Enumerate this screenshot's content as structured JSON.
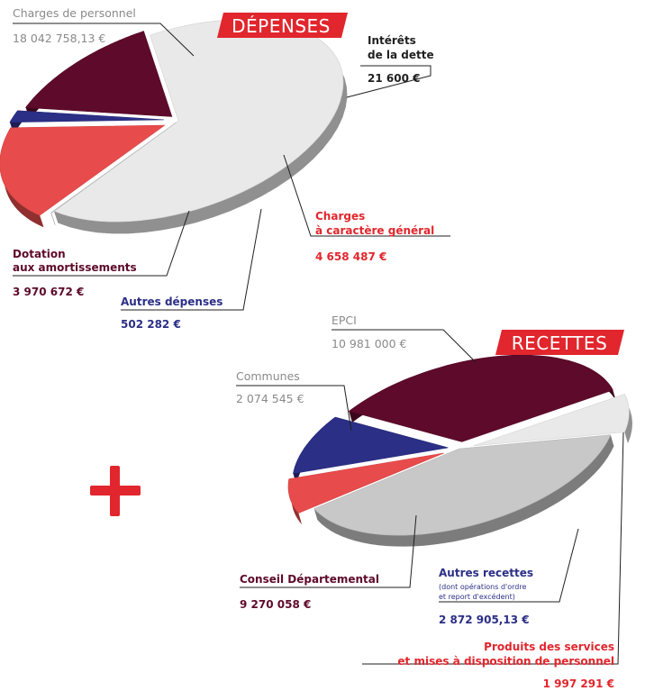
{
  "colors": {
    "grey": "#c8c8c8",
    "light": "#e9e9e9",
    "red": "#e84b4b",
    "navy": "#2b2f86",
    "burgundy": "#5e0a2a",
    "banner": "#e1262d",
    "text_grey": "#8a8a8a",
    "text_dark": "#1f1f1f"
  },
  "chart_data": [
    {
      "type": "pie",
      "title": "DÉPENSES",
      "slices": [
        {
          "key": "personnel",
          "label": "Charges de personnel",
          "value": 18042758.13,
          "value_label": "18 042 758,13 €",
          "color": "#e9e9e9"
        },
        {
          "key": "interets",
          "label": "Intérêts de la dette",
          "label_lines": [
            "Intérêts",
            "de la dette"
          ],
          "value": 21600,
          "value_label": "21 600 €",
          "color": "#c8c8c8"
        },
        {
          "key": "general",
          "label": "Charges à caractère général",
          "label_lines": [
            "Charges",
            "à caractère général"
          ],
          "value": 4658487,
          "value_label": "4 658 487 €",
          "color": "#e84b4b"
        },
        {
          "key": "autres",
          "label": "Autres dépenses",
          "value": 502282,
          "value_label": "502 282 €",
          "color": "#2b2f86"
        },
        {
          "key": "dotation",
          "label": "Dotation aux amortissements",
          "label_lines": [
            "Dotation",
            "aux amortissements"
          ],
          "value": 3970672,
          "value_label": "3 970 672 €",
          "color": "#5e0a2a"
        }
      ]
    },
    {
      "type": "pie",
      "title": "RECETTES",
      "slices": [
        {
          "key": "epci",
          "label": "EPCI",
          "value": 10981000,
          "value_label": "10 981 000 €",
          "color": "#c8c8c8"
        },
        {
          "key": "produits",
          "label": "Produits des services et mises à disposition de personnel",
          "label_lines": [
            "Produits des services",
            "et mises à disposition de personnel"
          ],
          "value": 1997291,
          "value_label": "1 997 291 €",
          "color": "#e84b4b"
        },
        {
          "key": "autres",
          "label": "Autres recettes",
          "note_lines": [
            "(dont opérations d'ordre",
            "et report d'excédent)"
          ],
          "value": 2872905.13,
          "value_label": "2 872 905,13 €",
          "color": "#2b2f86"
        },
        {
          "key": "conseil",
          "label": "Conseil Départemental",
          "value": 9270058,
          "value_label": "9 270 058 €",
          "color": "#5e0a2a"
        },
        {
          "key": "communes",
          "label": "Communes",
          "value": 2074545,
          "value_label": "2 074 545 €",
          "color": "#e9e9e9"
        }
      ]
    }
  ],
  "plus_sign": "+"
}
